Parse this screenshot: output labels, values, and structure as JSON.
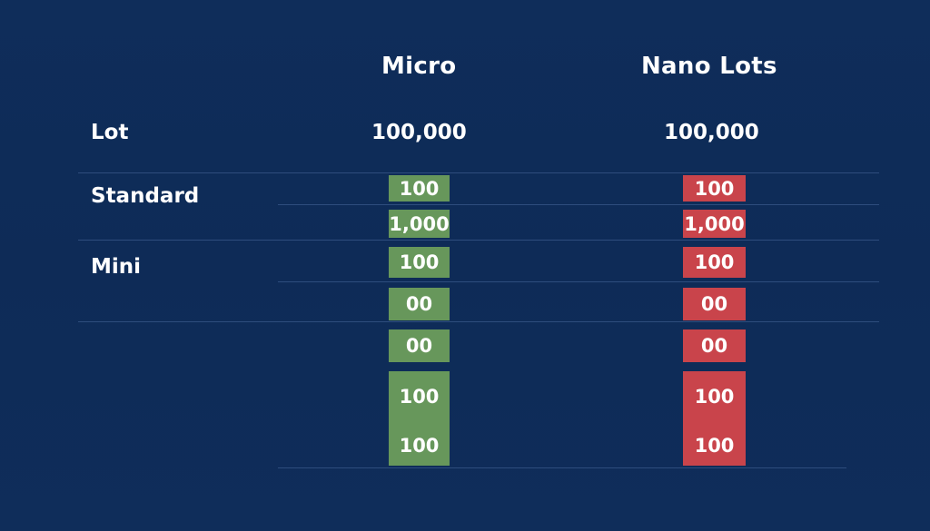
{
  "columns": {
    "micro": "Micro",
    "nano": "Nano Lots"
  },
  "rows": {
    "lot": "Lot",
    "standard": "Standard",
    "mini": "Mini"
  },
  "lot_values": {
    "micro": "100,000",
    "nano": "100,000"
  },
  "micro_cells": [
    "100",
    "1,000",
    "100",
    "00",
    "00"
  ],
  "nano_cells": [
    "100",
    "1,000",
    "100",
    "00",
    "00"
  ],
  "micro_tall": [
    "100",
    "100"
  ],
  "nano_tall": [
    "100",
    "100"
  ],
  "colors": {
    "background": "#0f2d5a",
    "green": "#67975b",
    "red": "#c9444b"
  }
}
